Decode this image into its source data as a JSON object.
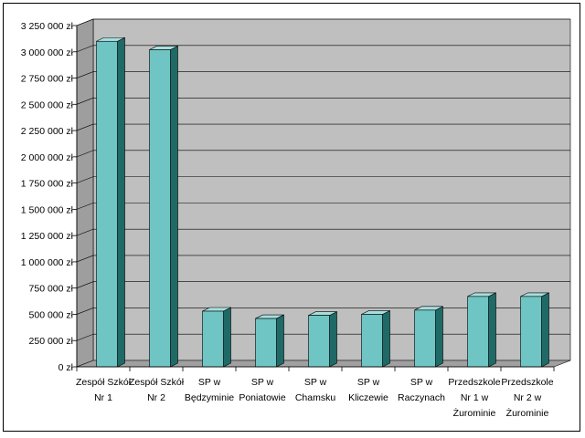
{
  "chart_data": {
    "type": "bar",
    "title": "",
    "xlabel": "",
    "ylabel": "",
    "ylim": [
      0,
      3250000
    ],
    "y_ticks": [
      {
        "value": 0,
        "label": "0 zł"
      },
      {
        "value": 250000,
        "label": "250 000 zł"
      },
      {
        "value": 500000,
        "label": "500 000 zł"
      },
      {
        "value": 750000,
        "label": "750 000 zł"
      },
      {
        "value": 1000000,
        "label": "1 000 000 zł"
      },
      {
        "value": 1250000,
        "label": "1 250 000 zł"
      },
      {
        "value": 1500000,
        "label": "1 500 000 zł"
      },
      {
        "value": 1750000,
        "label": "1 750 000 zł"
      },
      {
        "value": 2000000,
        "label": "2 000 000 zł"
      },
      {
        "value": 2250000,
        "label": "2 250 000 zł"
      },
      {
        "value": 2500000,
        "label": "2 500 000 zł"
      },
      {
        "value": 2750000,
        "label": "2 750 000 zł"
      },
      {
        "value": 3000000,
        "label": "3 000 000 zł"
      },
      {
        "value": 3250000,
        "label": "3 250 000 zł"
      }
    ],
    "categories": [
      [
        "Zespół Szkół",
        "Nr 1"
      ],
      [
        "Zespół Szkół",
        "Nr 2"
      ],
      [
        "SP w",
        "Będzyminie"
      ],
      [
        "SP w",
        "Poniatowie"
      ],
      [
        "SP w",
        "Chamsku"
      ],
      [
        "SP w",
        "Kliczewie"
      ],
      [
        "SP w",
        "Raczynach"
      ],
      [
        "Przedszkole",
        "Nr 1 w",
        "Żurominie"
      ],
      [
        "Przedszkole",
        "Nr 2 w",
        "Żurominie"
      ]
    ],
    "values": [
      3100000,
      3020000,
      530000,
      460000,
      490000,
      500000,
      540000,
      670000,
      670000
    ],
    "grid": true,
    "legend": "none",
    "style": "3d-bar",
    "colors": {
      "bar_front": "#6fc4c4",
      "bar_side": "#1f6a66",
      "bar_top": "#a8dede",
      "wall": "#bfbfbf",
      "floor": "#a0a0a0",
      "gridline": "#000000"
    }
  }
}
